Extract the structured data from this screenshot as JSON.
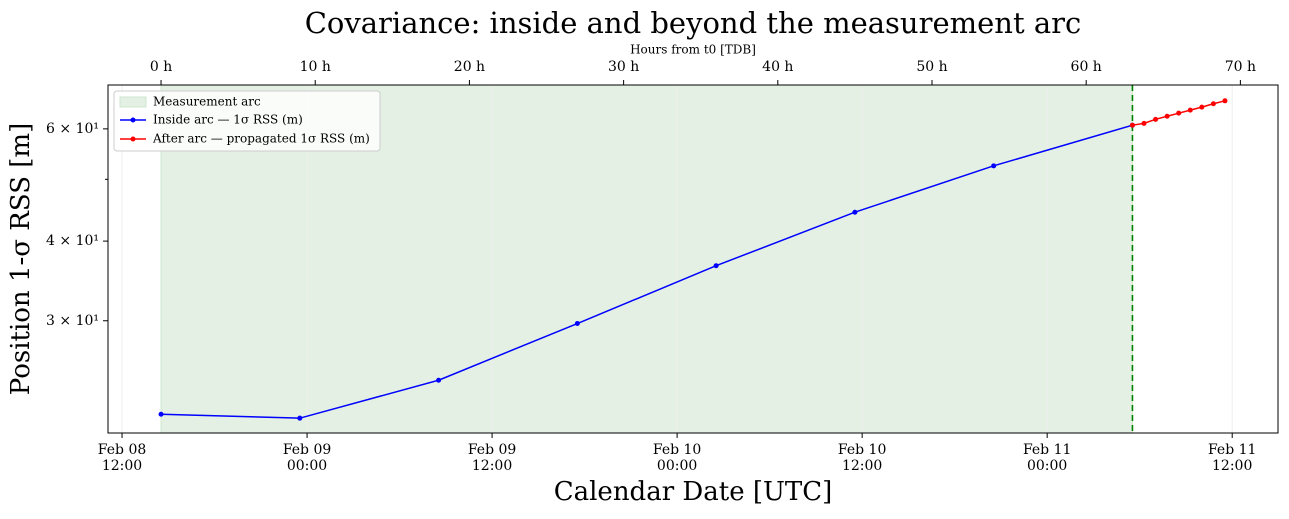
{
  "chart_data": {
    "type": "line",
    "title": "Covariance: inside and beyond the measurement arc",
    "x_label": "Calendar Date [UTC]",
    "top_x_label": "Hours from t0 [TDB]",
    "y_label": "Position 1-σ RSS [m]",
    "log_y": true,
    "grid": "x",
    "legend": "upper left",
    "xlim": [
      -3.44,
      72.44
    ],
    "xticks": [
      {
        "value": -2.53,
        "label": "Feb 08\n12:00"
      },
      {
        "value": 9.47,
        "label": "Feb 09\n00:00"
      },
      {
        "value": 21.47,
        "label": "Feb 09\n12:00"
      },
      {
        "value": 33.47,
        "label": "Feb 10\n00:00"
      },
      {
        "value": 45.47,
        "label": "Feb 10\n12:00"
      },
      {
        "value": 57.47,
        "label": "Feb 11\n00:00"
      },
      {
        "value": 69.47,
        "label": "Feb 11\n12:00"
      }
    ],
    "top_xticks": [
      {
        "value": 0,
        "label": "0 h"
      },
      {
        "value": 10,
        "label": "10 h"
      },
      {
        "value": 20,
        "label": "20 h"
      },
      {
        "value": 30,
        "label": "30 h"
      },
      {
        "value": 40,
        "label": "40 h"
      },
      {
        "value": 50,
        "label": "50 h"
      },
      {
        "value": 60,
        "label": "60 h"
      },
      {
        "value": 70,
        "label": "70 h"
      }
    ],
    "ylim": [
      20,
      70.3
    ],
    "yticks": [
      {
        "value": 30,
        "label": "3 × 10¹"
      },
      {
        "value": 40,
        "label": "4 × 10¹"
      },
      {
        "value": 60,
        "label": "6 × 10¹"
      }
    ],
    "minor_yticks": [
      50
    ],
    "arc_label": "Measurement arc",
    "arc_span": [
      0,
      63
    ],
    "arc_color": "#e3f0e3",
    "arc_end_color": "#008000",
    "series": [
      {
        "name": "Inside arc — 1σ RSS (m)",
        "color": "#0000ff",
        "x": [
          0,
          9,
          18,
          27,
          36,
          45,
          54,
          63
        ],
        "values": [
          21.4,
          21.1,
          24.2,
          29.7,
          36.6,
          44.4,
          52.5,
          60.8
        ]
      },
      {
        "name": "After arc — propagated 1σ RSS (m)",
        "color": "#ff0000",
        "x": [
          63,
          63.75,
          64.5,
          65.25,
          66,
          66.75,
          67.5,
          68.25,
          69
        ],
        "values": [
          60.8,
          61.2,
          62.1,
          62.8,
          63.5,
          64.2,
          64.9,
          65.7,
          66.4
        ]
      }
    ]
  }
}
